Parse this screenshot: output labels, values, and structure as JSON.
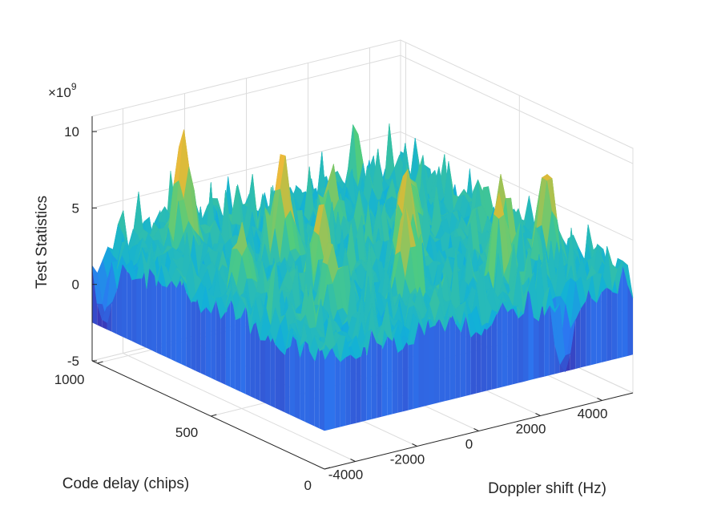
{
  "chart_data": {
    "type": "surface",
    "title": "",
    "xlabel": "Doppler shift (Hz)",
    "ylabel": "Code delay (chips)",
    "zlabel": "Test Statistics",
    "z_exponent_label": "×10",
    "z_exponent_power": "9",
    "x_ticks": [
      {
        "value": -4000,
        "label": "-4000"
      },
      {
        "value": -2000,
        "label": "-2000"
      },
      {
        "value": 0,
        "label": "0"
      },
      {
        "value": 2000,
        "label": "2000"
      },
      {
        "value": 4000,
        "label": "4000"
      }
    ],
    "y_ticks": [
      {
        "value": 0,
        "label": "0"
      },
      {
        "value": 500,
        "label": "500"
      },
      {
        "value": 1000,
        "label": "1000"
      }
    ],
    "z_ticks": [
      {
        "value": -5,
        "label": "-5"
      },
      {
        "value": 0,
        "label": "0"
      },
      {
        "value": 5,
        "label": "5"
      },
      {
        "value": 10,
        "label": "10"
      }
    ],
    "xlim": [
      -5000,
      5000
    ],
    "ylim": [
      0,
      1023
    ],
    "zlim": [
      -5,
      11
    ],
    "grid": true,
    "colormap": "parula",
    "notable_peaks": [
      {
        "x": -3300,
        "y": 850,
        "z": 10.5
      },
      {
        "x": -1800,
        "y": 620,
        "z": 10.2
      },
      {
        "x": 600,
        "y": 400,
        "z": 9.3
      },
      {
        "x": 3900,
        "y": 230,
        "z": 9.2
      },
      {
        "x": 2800,
        "y": 280,
        "z": 8.5
      },
      {
        "x": -2300,
        "y": 380,
        "z": 8.9
      },
      {
        "x": 1800,
        "y": 150,
        "z": 8.7
      },
      {
        "x": -900,
        "y": 200,
        "z": 9.0
      },
      {
        "x": 400,
        "y": 700,
        "z": 7.5
      },
      {
        "x": -4000,
        "y": 500,
        "z": 7.2
      },
      {
        "x": -3000,
        "y": 250,
        "z": 7.4
      },
      {
        "x": 2200,
        "y": 600,
        "z": 6.8
      }
    ],
    "notable_troughs": [
      {
        "x": -4900,
        "y": 980,
        "z": -2.8
      },
      {
        "x": 2900,
        "y": 20,
        "z": -3.2
      }
    ]
  }
}
